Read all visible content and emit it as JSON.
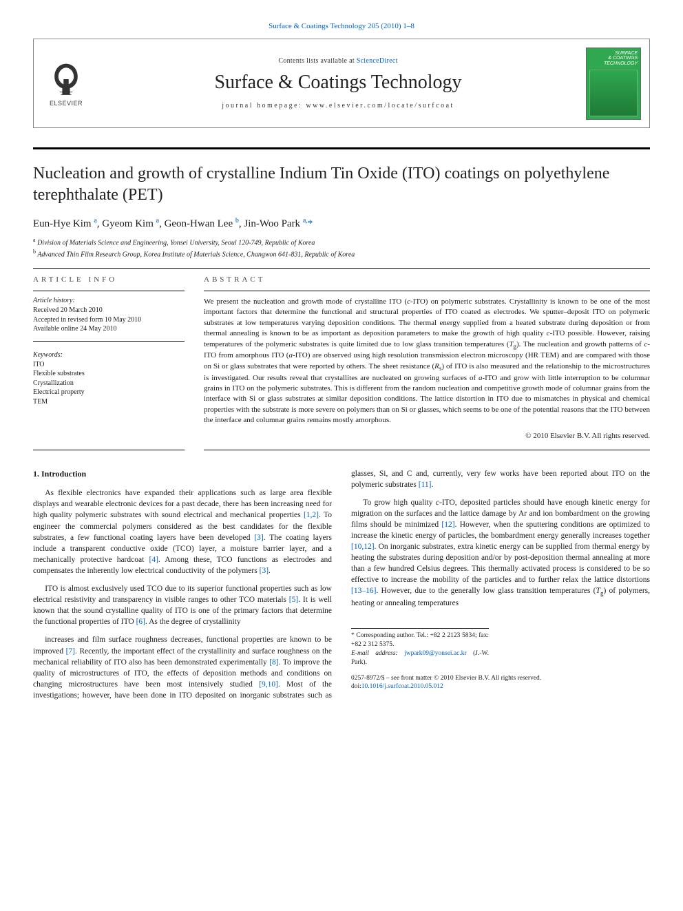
{
  "topline": {
    "text_before": "",
    "link_text": "Surface & Coatings Technology 205 (2010) 1–8",
    "link_color": "#0060b8"
  },
  "header": {
    "elsevier_brand": "ELSEVIER",
    "contents_prefix": "Contents lists available at ",
    "contents_link": "ScienceDirect",
    "journal_name": "Surface & Coatings Technology",
    "homepage_line": "journal homepage: www.elsevier.com/locate/surfcoat",
    "cover_title_line1": "SURFACE",
    "cover_title_line2": "& COATINGS",
    "cover_title_line3": "TECHNOLOGY"
  },
  "article": {
    "title": "Nucleation and growth of crystalline Indium Tin Oxide (ITO) coatings on polyethylene terephthalate (PET)",
    "authors_html": "Eun-Hye Kim <sup class='aff-sup'>a</sup>, Gyeom Kim <sup class='aff-sup'>a</sup>, Geon-Hwan Lee <sup class='aff-sup'>b</sup>, Jin-Woo Park <sup class='aff-sup'>a,</sup><span class='corr'>*</span>",
    "affiliations": [
      {
        "sup": "a",
        "text": "Division of Materials Science and Engineering, Yonsei University, Seoul 120-749, Republic of Korea"
      },
      {
        "sup": "b",
        "text": "Advanced Thin Film Research Group, Korea Institute of Materials Science, Changwon 641-831, Republic of Korea"
      }
    ]
  },
  "info": {
    "label": "ARTICLE INFO",
    "history_label": "Article history:",
    "history": [
      "Received 20 March 2010",
      "Accepted in revised form 10 May 2010",
      "Available online 24 May 2010"
    ],
    "keywords_label": "Keywords:",
    "keywords": [
      "ITO",
      "Flexible substrates",
      "Crystallization",
      "Electrical property",
      "TEM"
    ]
  },
  "abstract": {
    "label": "ABSTRACT",
    "text": "We present the nucleation and growth mode of crystalline ITO (c-ITO) on polymeric substrates. Crystallinity is known to be one of the most important factors that determine the functional and structural properties of ITO coated as electrodes. We sputter–deposit ITO on polymeric substrates at low temperatures varying deposition conditions. The thermal energy supplied from a heated substrate during deposition or from thermal annealing is known to be as important as deposition parameters to make the growth of high quality c-ITO possible. However, raising temperatures of the polymeric substrates is quite limited due to low glass transition temperatures (Tg). The nucleation and growth patterns of c-ITO from amorphous ITO (a-ITO) are observed using high resolution transmission electron microscopy (HR TEM) and are compared with those on Si or glass substrates that were reported by others. The sheet resistance (Rs) of ITO is also measured and the relationship to the microstructures is investigated. Our results reveal that crystallites are nucleated on growing surfaces of a-ITO and grow with little interruption to be columnar grains in ITO on the polymeric substrates. This is different from the random nucleation and competitive growth mode of columnar grains from the interface with Si or glass substrates at similar deposition conditions. The lattice distortion in ITO due to mismatches in physical and chemical properties with the substrate is more severe on polymers than on Si or glasses, which seems to be one of the potential reasons that the ITO between the interface and columnar grains remains mostly amorphous.",
    "copyright": "© 2010 Elsevier B.V. All rights reserved."
  },
  "body": {
    "section_title": "1. Introduction",
    "paragraphs": [
      "As flexible electronics have expanded their applications such as large area flexible displays and wearable electronic devices for a past decade, there has been increasing need for high quality polymeric substrates with sound electrical and mechanical properties [1,2]. To engineer the commercial polymers considered as the best candidates for the flexible substrates, a few functional coating layers have been developed [3]. The coating layers include a transparent conductive oxide (TCO) layer, a moisture barrier layer, and a mechanically protective hardcoat [4]. Among these, TCO functions as electrodes and compensates the inherently low electrical conductivity of the polymers [3].",
      "ITO is almost exclusively used TCO due to its superior functional properties such as low electrical resistivity and transparency in visible ranges to other TCO materials [5]. It is well known that the sound crystalline quality of ITO is one of the primary factors that determine the functional properties of ITO [6]. As the degree of crystallinity",
      "increases and film surface roughness decreases, functional properties are known to be improved [7]. Recently, the important effect of the crystallinity and surface roughness on the mechanical reliability of ITO also has been demonstrated experimentally [8]. To improve the quality of microstructures of ITO, the effects of deposition methods and conditions on changing microstructures have been most intensively studied [9,10]. Most of the investigations; however, have been done in ITO deposited on inorganic substrates such as glasses, Si, and C and, currently, very few works have been reported about ITO on the polymeric substrates [11].",
      "To grow high quality c-ITO, deposited particles should have enough kinetic energy for migration on the surfaces and the lattice damage by Ar and ion bombardment on the growing films should be minimized [12]. However, when the sputtering conditions are optimized to increase the kinetic energy of particles, the bombardment energy generally increases together [10,12]. On inorganic substrates, extra kinetic energy can be supplied from thermal energy by heating the substrates during deposition and/or by post-deposition thermal annealing at more than a few hundred Celsius degrees. This thermally activated process is considered to be so effective to increase the mobility of the particles and to further relax the lattice distortions [13–16]. However, due to the generally low glass transition temperatures (Tg) of polymers, heating or annealing temperatures"
    ],
    "refs_in_text": {
      "[1,2]": "#",
      "[3]": "#",
      "[4]": "#",
      "[5]": "#",
      "[6]": "#",
      "[7]": "#",
      "[8]": "#",
      "[9,10]": "#",
      "[10,12]": "#",
      "[11]": "#",
      "[12]": "#",
      "[13–16]": "#"
    }
  },
  "footer": {
    "corr_line": "* Corresponding author. Tel.: +82 2 2123 5834; fax: +82 2 312 5375.",
    "email_label": "E-mail address:",
    "email": "jwpark09@yonsei.ac.kr",
    "email_suffix": "(J.-W. Park).",
    "issn_line": "0257-8972/$ – see front matter © 2010 Elsevier B.V. All rights reserved.",
    "doi_prefix": "doi:",
    "doi": "10.1016/j.surfcoat.2010.05.012"
  },
  "colors": {
    "link": "#0060b8",
    "text": "#1a1a1a",
    "cover_bg": "#2fa84f",
    "rule": "#000000"
  },
  "typography": {
    "title_fontsize": 24,
    "journal_fontsize": 28,
    "body_fontsize": 11.5,
    "abstract_fontsize": 11,
    "small_fontsize": 10
  }
}
